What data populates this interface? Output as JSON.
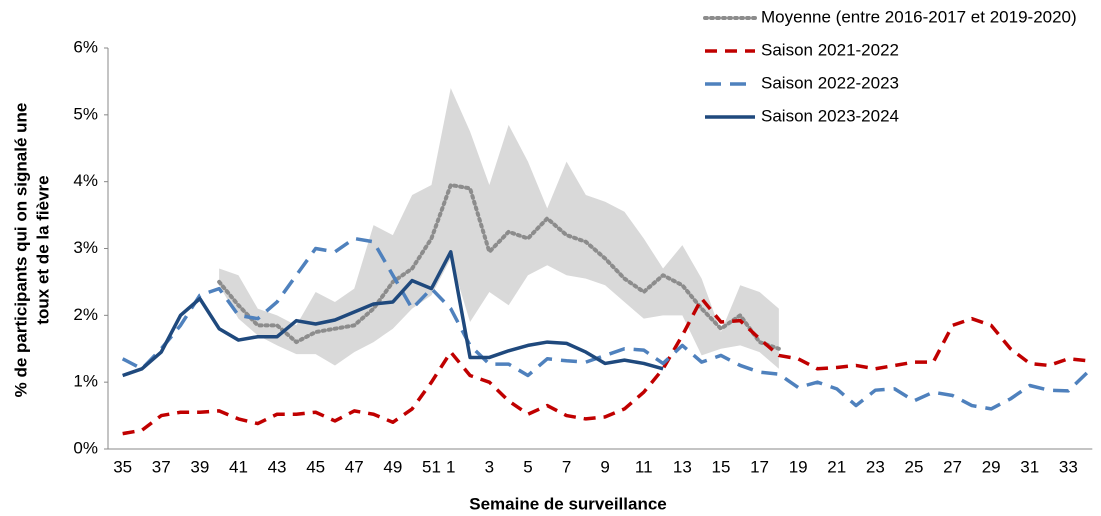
{
  "chart_data": {
    "type": "line",
    "xlabel": "Semaine de surveillance",
    "ylabel": [
      "% de participants  qui on signalé une",
      "toux et de la fièvre"
    ],
    "categories": [
      "35",
      null,
      "37",
      null,
      "39",
      null,
      "41",
      null,
      "43",
      null,
      "45",
      null,
      "47",
      null,
      "49",
      null,
      "51",
      "1",
      null,
      "3",
      null,
      "5",
      null,
      "7",
      null,
      "9",
      null,
      "11",
      null,
      "13",
      null,
      "15",
      null,
      "17",
      null,
      "19",
      null,
      "21",
      null,
      "23",
      null,
      "25",
      null,
      "27",
      null,
      "29",
      null,
      "31",
      null,
      "33",
      null
    ],
    "ylim": [
      0,
      6
    ],
    "yticks": [
      {
        "value": 0,
        "label": "0%"
      },
      {
        "value": 1,
        "label": "1%"
      },
      {
        "value": 2,
        "label": "2%"
      },
      {
        "value": 3,
        "label": "3%"
      },
      {
        "value": 4,
        "label": "4%"
      },
      {
        "value": 5,
        "label": "5%"
      },
      {
        "value": 6,
        "label": "6%"
      }
    ],
    "grid": false,
    "legend": "top-right",
    "range": {
      "color": "#d9d9d9",
      "upper": [
        null,
        null,
        null,
        null,
        null,
        2.7,
        2.6,
        2.1,
        2.0,
        1.85,
        2.35,
        2.2,
        2.4,
        3.35,
        3.2,
        3.8,
        3.95,
        5.4,
        4.75,
        3.95,
        4.85,
        4.3,
        3.6,
        4.3,
        3.8,
        3.7,
        3.55,
        3.15,
        2.7,
        3.05,
        2.55,
        1.75,
        2.45,
        2.35,
        2.1,
        null,
        null,
        null,
        null,
        null,
        null,
        null,
        null,
        null,
        null,
        null,
        null,
        null,
        null,
        null,
        null
      ],
      "lower": [
        null,
        null,
        null,
        null,
        null,
        2.45,
        1.95,
        1.7,
        1.55,
        1.42,
        1.42,
        1.25,
        1.45,
        1.6,
        1.8,
        2.1,
        2.3,
        2.85,
        1.9,
        2.35,
        2.15,
        2.6,
        2.75,
        2.6,
        2.55,
        2.45,
        2.2,
        1.95,
        2.0,
        2.0,
        1.4,
        1.5,
        1.55,
        1.45,
        1.2,
        null,
        null,
        null,
        null,
        null,
        null,
        null,
        null,
        null,
        null,
        null,
        null,
        null,
        null,
        null,
        null
      ]
    },
    "series": [
      {
        "name": "Moyenne (entre 2016-2017 et 2019-2020)",
        "color": "#8c8c8c",
        "dash": "dotted",
        "values": [
          null,
          null,
          null,
          null,
          null,
          2.5,
          2.15,
          1.85,
          1.85,
          1.6,
          1.75,
          1.8,
          1.85,
          2.1,
          2.5,
          2.7,
          3.15,
          3.95,
          3.9,
          2.95,
          3.25,
          3.15,
          3.45,
          3.2,
          3.1,
          2.85,
          2.55,
          2.35,
          2.6,
          2.45,
          2.1,
          1.8,
          2.0,
          1.6,
          1.5,
          null,
          null,
          null,
          null,
          null,
          null,
          null,
          null,
          null,
          null,
          null,
          null,
          null,
          null,
          null,
          null
        ]
      },
      {
        "name": "Saison 2021-2022",
        "color": "#c00000",
        "dash": "dashed",
        "values": [
          0.23,
          0.28,
          0.5,
          0.55,
          0.55,
          0.57,
          0.45,
          0.38,
          0.52,
          0.52,
          0.55,
          0.42,
          0.57,
          0.52,
          0.4,
          0.6,
          1.0,
          1.45,
          1.1,
          1.0,
          0.72,
          0.52,
          0.65,
          0.5,
          0.45,
          0.48,
          0.6,
          0.85,
          1.2,
          1.7,
          2.25,
          1.9,
          1.92,
          1.65,
          1.4,
          1.35,
          1.2,
          1.22,
          1.25,
          1.2,
          1.25,
          1.3,
          1.3,
          1.85,
          1.95,
          1.85,
          1.5,
          1.28,
          1.25,
          1.35,
          1.32
        ]
      },
      {
        "name": "Saison 2022-2023",
        "color": "#4f81bd",
        "dash": "longdash",
        "values": [
          1.35,
          1.2,
          1.5,
          1.85,
          2.3,
          2.4,
          2.0,
          1.95,
          2.2,
          2.6,
          3.0,
          2.95,
          3.15,
          3.1,
          2.6,
          2.1,
          2.4,
          2.1,
          1.55,
          1.27,
          1.27,
          1.1,
          1.35,
          1.32,
          1.3,
          1.4,
          1.5,
          1.48,
          1.28,
          1.55,
          1.3,
          1.4,
          1.25,
          1.15,
          1.12,
          0.92,
          1.0,
          0.9,
          0.65,
          0.88,
          0.9,
          0.72,
          0.85,
          0.8,
          0.65,
          0.6,
          0.75,
          0.95,
          0.88,
          0.87,
          1.15
        ]
      },
      {
        "name": "Saison 2023-2024",
        "color": "#1f497d",
        "dash": "solid",
        "values": [
          1.1,
          1.2,
          1.45,
          2.0,
          2.25,
          1.8,
          1.63,
          1.68,
          1.68,
          1.92,
          1.87,
          1.93,
          2.05,
          2.17,
          2.2,
          2.52,
          2.4,
          2.95,
          1.37,
          1.37,
          1.47,
          1.55,
          1.6,
          1.58,
          1.45,
          1.28,
          1.33,
          1.28,
          1.2,
          null,
          null,
          null,
          null,
          null,
          null,
          null,
          null,
          null,
          null,
          null,
          null,
          null,
          null,
          null,
          null,
          null,
          null,
          null,
          null,
          null,
          null
        ]
      }
    ]
  }
}
